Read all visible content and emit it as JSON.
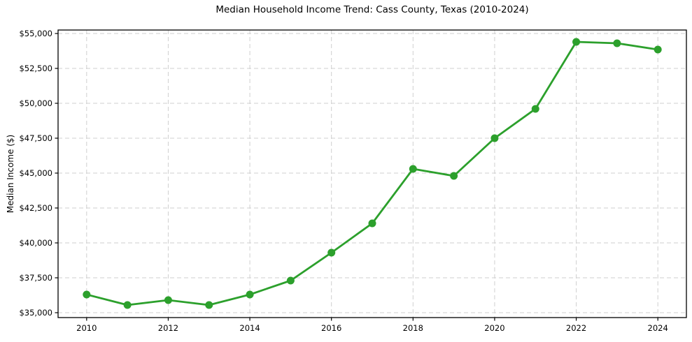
{
  "chart_data": {
    "type": "line",
    "title": "Median Household Income Trend: Cass County, Texas (2010-2024)",
    "xlabel": "",
    "ylabel": "Median Income ($)",
    "series_name": "Median Household Income",
    "x": [
      2010,
      2011,
      2012,
      2013,
      2014,
      2015,
      2016,
      2017,
      2018,
      2019,
      2020,
      2021,
      2022,
      2023,
      2024
    ],
    "values": [
      36300,
      35550,
      35900,
      35550,
      36300,
      37300,
      39300,
      41400,
      45300,
      44800,
      47500,
      49600,
      54400,
      54300,
      53850
    ],
    "x_ticks": [
      2010,
      2012,
      2014,
      2016,
      2018,
      2020,
      2022,
      2024
    ],
    "x_tick_labels": [
      "2010",
      "2012",
      "2014",
      "2016",
      "2018",
      "2020",
      "2022",
      "2024"
    ],
    "y_ticks": [
      35000,
      37500,
      40000,
      42500,
      45000,
      47500,
      50000,
      52500,
      55000
    ],
    "y_tick_labels": [
      "$35,000",
      "$37,500",
      "$40,000",
      "$42,500",
      "$45,000",
      "$47,500",
      "$50,000",
      "$52,500",
      "$55,000"
    ],
    "xlim": [
      2009.3,
      2024.7
    ],
    "ylim": [
      34650,
      55250
    ],
    "grid": true,
    "grid_style": "dashed",
    "legend_position": "none",
    "line_color": "#2ca02c",
    "marker": "circle",
    "marker_color": "#2ca02c",
    "background_color": "#ffffff"
  }
}
